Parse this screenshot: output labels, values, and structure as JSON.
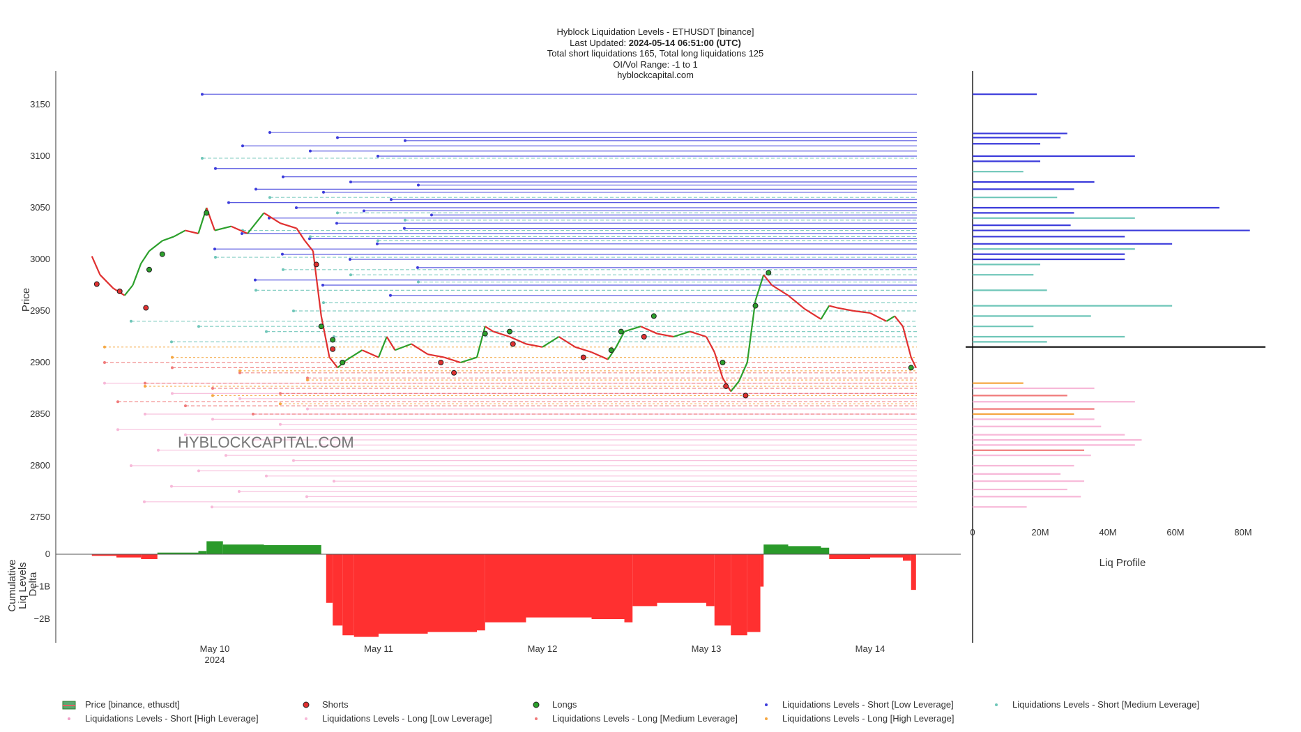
{
  "header": {
    "line1": "Hyblock Liquidation Levels - ETHUSDT [binance]",
    "line2_prefix": "Last Updated: ",
    "line2_value": "2024-05-14 06:51:00 (UTC)",
    "line3": "Total short liquidations 165, Total long liquidations 125",
    "line4": "OI/Vol Range: -1 to 1",
    "line5": "hyblockcapital.com"
  },
  "watermark": "HYBLOCKCAPITAL.COM",
  "colors": {
    "short_low": "#3b3bdb",
    "short_medium": "#6ec6b8",
    "short_high": "#f0a0c8",
    "long_low": "#f7b8d8",
    "long_medium": "#f07a7a",
    "long_high": "#f5a742",
    "price_up": "#2ca02c",
    "price_down": "#e03030",
    "delta_pos": "#2a9a2a",
    "delta_neg": "#ff3030",
    "current_price_line": "#000000"
  },
  "chart_data": [
    {
      "type": "line",
      "name": "price-and-liquidation-levels",
      "ylabel": "Price",
      "y_ticks": [
        3150,
        3100,
        3050,
        3000,
        2950,
        2900,
        2850,
        2800,
        2750
      ],
      "ylim": [
        2730,
        3180
      ],
      "x_ticks": [
        {
          "label": "May 10",
          "sub": "2024",
          "day": 10
        },
        {
          "label": "May 11",
          "sub": "",
          "day": 11
        },
        {
          "label": "May 12",
          "sub": "",
          "day": 12
        },
        {
          "label": "May 13",
          "sub": "",
          "day": 13
        },
        {
          "label": "May 14",
          "sub": "",
          "day": 14
        }
      ],
      "xlim_days": [
        9.25,
        14.6
      ],
      "price_series": {
        "name": "Price [binance, ethusdt]",
        "points": [
          [
            9.25,
            3003
          ],
          [
            9.3,
            2985
          ],
          [
            9.38,
            2972
          ],
          [
            9.45,
            2965
          ],
          [
            9.5,
            2975
          ],
          [
            9.55,
            2996
          ],
          [
            9.6,
            3008
          ],
          [
            9.68,
            3018
          ],
          [
            9.75,
            3022
          ],
          [
            9.82,
            3028
          ],
          [
            9.9,
            3025
          ],
          [
            9.95,
            3050
          ],
          [
            10.0,
            3028
          ],
          [
            10.1,
            3032
          ],
          [
            10.2,
            3025
          ],
          [
            10.3,
            3045
          ],
          [
            10.4,
            3035
          ],
          [
            10.5,
            3030
          ],
          [
            10.55,
            3018
          ],
          [
            10.6,
            3008
          ],
          [
            10.65,
            2945
          ],
          [
            10.7,
            2905
          ],
          [
            10.75,
            2895
          ],
          [
            10.8,
            2902
          ],
          [
            10.9,
            2912
          ],
          [
            11.0,
            2905
          ],
          [
            11.05,
            2925
          ],
          [
            11.1,
            2912
          ],
          [
            11.2,
            2918
          ],
          [
            11.3,
            2908
          ],
          [
            11.4,
            2905
          ],
          [
            11.5,
            2900
          ],
          [
            11.6,
            2905
          ],
          [
            11.65,
            2935
          ],
          [
            11.7,
            2930
          ],
          [
            11.8,
            2925
          ],
          [
            11.9,
            2918
          ],
          [
            12.0,
            2915
          ],
          [
            12.1,
            2925
          ],
          [
            12.2,
            2915
          ],
          [
            12.3,
            2910
          ],
          [
            12.4,
            2903
          ],
          [
            12.45,
            2915
          ],
          [
            12.5,
            2930
          ],
          [
            12.6,
            2935
          ],
          [
            12.7,
            2928
          ],
          [
            12.8,
            2925
          ],
          [
            12.9,
            2930
          ],
          [
            13.0,
            2925
          ],
          [
            13.05,
            2910
          ],
          [
            13.1,
            2885
          ],
          [
            13.15,
            2872
          ],
          [
            13.2,
            2882
          ],
          [
            13.25,
            2900
          ],
          [
            13.3,
            2960
          ],
          [
            13.35,
            2985
          ],
          [
            13.4,
            2975
          ],
          [
            13.5,
            2965
          ],
          [
            13.6,
            2952
          ],
          [
            13.7,
            2942
          ],
          [
            13.75,
            2955
          ],
          [
            13.8,
            2953
          ],
          [
            13.9,
            2950
          ],
          [
            14.0,
            2948
          ],
          [
            14.1,
            2940
          ],
          [
            14.15,
            2945
          ],
          [
            14.2,
            2935
          ],
          [
            14.25,
            2905
          ],
          [
            14.28,
            2895
          ]
        ]
      },
      "shorts_markers": [
        [
          9.28,
          2976
        ],
        [
          9.42,
          2969
        ],
        [
          9.58,
          2953
        ],
        [
          10.62,
          2995
        ],
        [
          10.72,
          2913
        ],
        [
          11.38,
          2900
        ],
        [
          11.46,
          2890
        ],
        [
          11.82,
          2918
        ],
        [
          12.25,
          2905
        ],
        [
          12.62,
          2925
        ],
        [
          13.12,
          2877
        ],
        [
          13.24,
          2868
        ]
      ],
      "longs_markers": [
        [
          9.6,
          2990
        ],
        [
          9.68,
          3005
        ],
        [
          9.95,
          3045
        ],
        [
          10.65,
          2935
        ],
        [
          10.72,
          2922
        ],
        [
          10.78,
          2900
        ],
        [
          11.65,
          2928
        ],
        [
          11.8,
          2930
        ],
        [
          12.42,
          2912
        ],
        [
          12.48,
          2930
        ],
        [
          12.68,
          2945
        ],
        [
          13.1,
          2900
        ],
        [
          13.3,
          2955
        ],
        [
          13.38,
          2987
        ],
        [
          14.25,
          2895
        ]
      ],
      "current_price": 2915,
      "short_levels": {
        "low_leverage": [
          3160,
          3123,
          3118,
          3115,
          3110,
          3105,
          3100,
          3088,
          3080,
          3075,
          3072,
          3068,
          3065,
          3058,
          3055,
          3050,
          3047,
          3043,
          3040,
          3035,
          3030,
          3025,
          3020,
          3015,
          3010,
          3005,
          3000,
          2992,
          2980,
          2975,
          2965
        ],
        "medium_leverage": [
          3098,
          3060,
          3045,
          3038,
          3028,
          3022,
          3018,
          3002,
          2990,
          2985,
          2978,
          2970,
          2958,
          2950,
          2940,
          2935,
          2930,
          2925,
          2920
        ]
      },
      "long_levels": {
        "low_leverage": [
          2880,
          2870,
          2865,
          2855,
          2850,
          2845,
          2840,
          2835,
          2830,
          2825,
          2820,
          2815,
          2810,
          2805,
          2800,
          2795,
          2790,
          2785,
          2780,
          2775,
          2770,
          2765,
          2760
        ],
        "medium_leverage": [
          2900,
          2895,
          2890,
          2885,
          2880,
          2875,
          2870,
          2862,
          2858,
          2850
        ],
        "high_leverage": [
          2915,
          2905,
          2892,
          2883,
          2877,
          2868,
          2860
        ]
      }
    },
    {
      "type": "area",
      "name": "cumulative-liq-levels-delta",
      "ylabel": "Cumulative Liq Levels Delta",
      "y_ticks": [
        {
          "value": 0,
          "label": "0"
        },
        {
          "value": -1,
          "label": "−1B"
        },
        {
          "value": -2,
          "label": "−2B"
        }
      ],
      "ylim": [
        -2.6,
        0.45
      ],
      "unit": "B",
      "points": [
        [
          9.25,
          -0.05
        ],
        [
          9.4,
          -0.1
        ],
        [
          9.55,
          -0.15
        ],
        [
          9.65,
          0.05
        ],
        [
          9.9,
          0.1
        ],
        [
          9.95,
          0.4
        ],
        [
          10.05,
          0.3
        ],
        [
          10.3,
          0.28
        ],
        [
          10.6,
          0.28
        ],
        [
          10.65,
          0.0
        ],
        [
          10.68,
          -1.5
        ],
        [
          10.72,
          -2.2
        ],
        [
          10.78,
          -2.5
        ],
        [
          10.85,
          -2.55
        ],
        [
          11.0,
          -2.45
        ],
        [
          11.3,
          -2.4
        ],
        [
          11.6,
          -2.35
        ],
        [
          11.65,
          -2.1
        ],
        [
          11.9,
          -1.95
        ],
        [
          12.3,
          -2.0
        ],
        [
          12.5,
          -2.1
        ],
        [
          12.55,
          -1.6
        ],
        [
          12.7,
          -1.5
        ],
        [
          13.0,
          -1.6
        ],
        [
          13.05,
          -2.2
        ],
        [
          13.15,
          -2.5
        ],
        [
          13.25,
          -2.4
        ],
        [
          13.33,
          -1.0
        ],
        [
          13.35,
          0.3
        ],
        [
          13.5,
          0.25
        ],
        [
          13.7,
          0.2
        ],
        [
          13.75,
          -0.15
        ],
        [
          14.0,
          -0.1
        ],
        [
          14.2,
          -0.2
        ],
        [
          14.25,
          -1.1
        ],
        [
          14.28,
          -1.05
        ]
      ]
    },
    {
      "type": "bar",
      "name": "liq-profile",
      "xlabel": "Liq Profile",
      "x_ticks": [
        "0",
        "20M",
        "40M",
        "60M",
        "80M"
      ],
      "xlim": [
        0,
        85
      ],
      "orientation": "horizontal",
      "bars": [
        {
          "price": 3160,
          "value": 19,
          "kind": "short_low"
        },
        {
          "price": 3122,
          "value": 28,
          "kind": "short_low"
        },
        {
          "price": 3118,
          "value": 26,
          "kind": "short_low"
        },
        {
          "price": 3112,
          "value": 20,
          "kind": "short_low"
        },
        {
          "price": 3100,
          "value": 48,
          "kind": "short_low"
        },
        {
          "price": 3095,
          "value": 20,
          "kind": "short_low"
        },
        {
          "price": 3085,
          "value": 15,
          "kind": "short_medium"
        },
        {
          "price": 3075,
          "value": 36,
          "kind": "short_low"
        },
        {
          "price": 3068,
          "value": 30,
          "kind": "short_low"
        },
        {
          "price": 3060,
          "value": 25,
          "kind": "short_medium"
        },
        {
          "price": 3050,
          "value": 73,
          "kind": "short_low"
        },
        {
          "price": 3045,
          "value": 30,
          "kind": "short_low"
        },
        {
          "price": 3040,
          "value": 48,
          "kind": "short_medium"
        },
        {
          "price": 3033,
          "value": 29,
          "kind": "short_low"
        },
        {
          "price": 3028,
          "value": 82,
          "kind": "short_low"
        },
        {
          "price": 3022,
          "value": 45,
          "kind": "short_low"
        },
        {
          "price": 3015,
          "value": 59,
          "kind": "short_low"
        },
        {
          "price": 3010,
          "value": 48,
          "kind": "short_medium"
        },
        {
          "price": 3005,
          "value": 45,
          "kind": "short_low"
        },
        {
          "price": 3000,
          "value": 45,
          "kind": "short_low"
        },
        {
          "price": 2995,
          "value": 20,
          "kind": "short_medium"
        },
        {
          "price": 2985,
          "value": 18,
          "kind": "short_medium"
        },
        {
          "price": 2970,
          "value": 22,
          "kind": "short_medium"
        },
        {
          "price": 2955,
          "value": 59,
          "kind": "short_medium"
        },
        {
          "price": 2945,
          "value": 35,
          "kind": "short_medium"
        },
        {
          "price": 2935,
          "value": 18,
          "kind": "short_medium"
        },
        {
          "price": 2925,
          "value": 45,
          "kind": "short_medium"
        },
        {
          "price": 2920,
          "value": 22,
          "kind": "short_medium"
        },
        {
          "price": 2880,
          "value": 15,
          "kind": "long_high"
        },
        {
          "price": 2875,
          "value": 36,
          "kind": "long_low"
        },
        {
          "price": 2868,
          "value": 28,
          "kind": "long_medium"
        },
        {
          "price": 2862,
          "value": 48,
          "kind": "long_low"
        },
        {
          "price": 2855,
          "value": 36,
          "kind": "long_medium"
        },
        {
          "price": 2850,
          "value": 30,
          "kind": "long_high"
        },
        {
          "price": 2845,
          "value": 36,
          "kind": "long_low"
        },
        {
          "price": 2838,
          "value": 38,
          "kind": "long_low"
        },
        {
          "price": 2830,
          "value": 45,
          "kind": "long_low"
        },
        {
          "price": 2825,
          "value": 50,
          "kind": "long_low"
        },
        {
          "price": 2820,
          "value": 48,
          "kind": "long_low"
        },
        {
          "price": 2815,
          "value": 33,
          "kind": "long_medium"
        },
        {
          "price": 2810,
          "value": 35,
          "kind": "long_low"
        },
        {
          "price": 2800,
          "value": 30,
          "kind": "long_low"
        },
        {
          "price": 2792,
          "value": 26,
          "kind": "long_low"
        },
        {
          "price": 2785,
          "value": 33,
          "kind": "long_low"
        },
        {
          "price": 2777,
          "value": 28,
          "kind": "long_low"
        },
        {
          "price": 2770,
          "value": 32,
          "kind": "long_low"
        },
        {
          "price": 2760,
          "value": 16,
          "kind": "long_low"
        }
      ]
    }
  ],
  "legend": [
    {
      "label": "Price [binance, ethusdt]",
      "kind": "price"
    },
    {
      "label": "Shorts",
      "kind": "shorts"
    },
    {
      "label": "Longs",
      "kind": "longs"
    },
    {
      "label": "Liquidations Levels - Short [Low Leverage]",
      "kind": "short_low"
    },
    {
      "label": "Liquidations Levels - Short [Medium Leverage]",
      "kind": "short_medium"
    },
    {
      "label": "Liquidations Levels - Short [High Leverage]",
      "kind": "short_high"
    },
    {
      "label": "Liquidations Levels - Long [Low Leverage]",
      "kind": "long_low"
    },
    {
      "label": "Liquidations Levels - Long [Medium Leverage]",
      "kind": "long_medium"
    },
    {
      "label": "Liquidations Levels - Long [High Leverage]",
      "kind": "long_high"
    }
  ]
}
